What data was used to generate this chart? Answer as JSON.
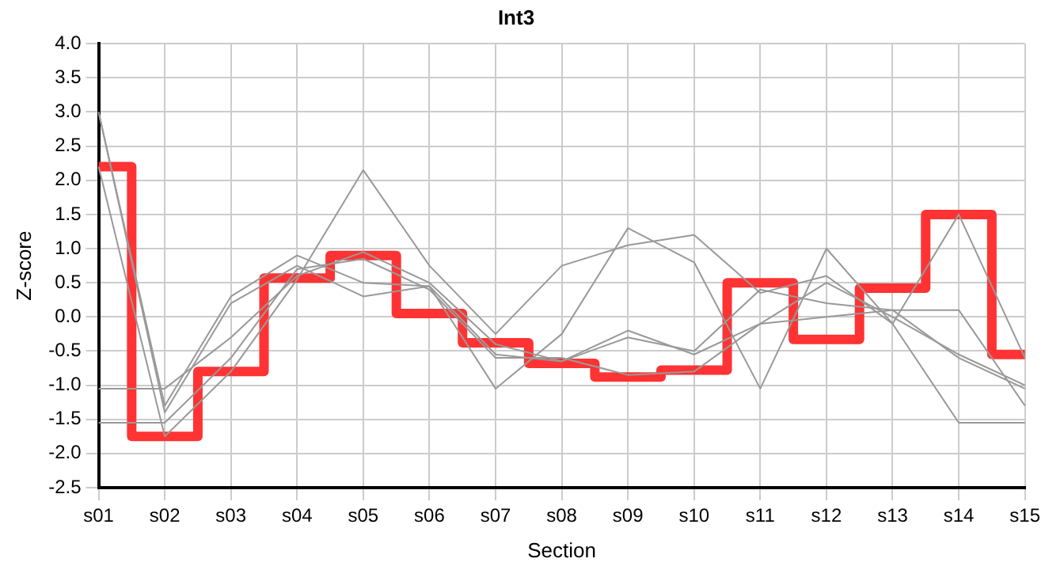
{
  "chart_data": {
    "type": "line",
    "title": "Int3",
    "xlabel": "Section",
    "ylabel": "Z-score",
    "categories": [
      "s01",
      "s02",
      "s03",
      "s04",
      "s05",
      "s06",
      "s07",
      "s08",
      "s09",
      "s10",
      "s11",
      "s12",
      "s13",
      "s14",
      "s15"
    ],
    "ylim": [
      -2.5,
      4
    ],
    "yticks": [
      {
        "value": -2.5,
        "label": "-2.5"
      },
      {
        "value": -2,
        "label": "-2.0"
      },
      {
        "value": -1.5,
        "label": "-1.5"
      },
      {
        "value": -1,
        "label": "-1.0"
      },
      {
        "value": -0.5,
        "label": "-0.5"
      },
      {
        "value": 0,
        "label": "0.0"
      },
      {
        "value": 0.5,
        "label": "0.5"
      },
      {
        "value": 1,
        "label": "1.0"
      },
      {
        "value": 1.5,
        "label": "1.5"
      },
      {
        "value": 2,
        "label": "2.0"
      },
      {
        "value": 2.5,
        "label": "2.5"
      },
      {
        "value": 3,
        "label": "3.0"
      },
      {
        "value": 3.5,
        "label": "3.5"
      },
      {
        "value": 4,
        "label": "4.0"
      }
    ],
    "grid": true,
    "legend": false,
    "marker": "none",
    "series": [
      {
        "color": "#999999",
        "values": [
          3.0,
          -1.3,
          0.3,
          0.9,
          0.5,
          0.45,
          -0.55,
          -0.65,
          -0.3,
          -0.5,
          0.4,
          0.2,
          0.1,
          0.1,
          -1.3
        ]
      },
      {
        "color": "#999999",
        "values": [
          3.0,
          -1.4,
          0.2,
          0.75,
          0.3,
          0.45,
          -1.05,
          -0.25,
          1.3,
          0.8,
          -1.05,
          1.0,
          -0.1,
          -1.55,
          -1.55
        ]
      },
      {
        "color": "#999999",
        "values": [
          2.2,
          -1.75,
          -0.8,
          0.55,
          2.15,
          0.75,
          -0.25,
          0.75,
          1.05,
          1.2,
          0.35,
          0.6,
          -0.1,
          1.5,
          -0.6
        ]
      },
      {
        "color": "#999999",
        "values": [
          -1.05,
          -1.05,
          -0.3,
          0.6,
          0.95,
          0.5,
          -0.4,
          -0.65,
          -0.2,
          -0.55,
          -0.1,
          0.5,
          0.0,
          -0.55,
          -1.0
        ]
      },
      {
        "color": "#999999",
        "values": [
          -1.55,
          -1.55,
          -0.6,
          0.7,
          0.85,
          0.4,
          -0.6,
          -0.6,
          -0.85,
          -0.8,
          -0.1,
          0.0,
          0.1,
          -0.6,
          -1.05
        ]
      },
      {
        "type": "step",
        "color": "#ff3333",
        "values": [
          2.2,
          -1.75,
          -0.8,
          0.57,
          0.9,
          0.05,
          -0.38,
          -0.68,
          -0.88,
          -0.78,
          0.5,
          -0.33,
          0.42,
          1.5,
          -0.55
        ]
      }
    ]
  }
}
